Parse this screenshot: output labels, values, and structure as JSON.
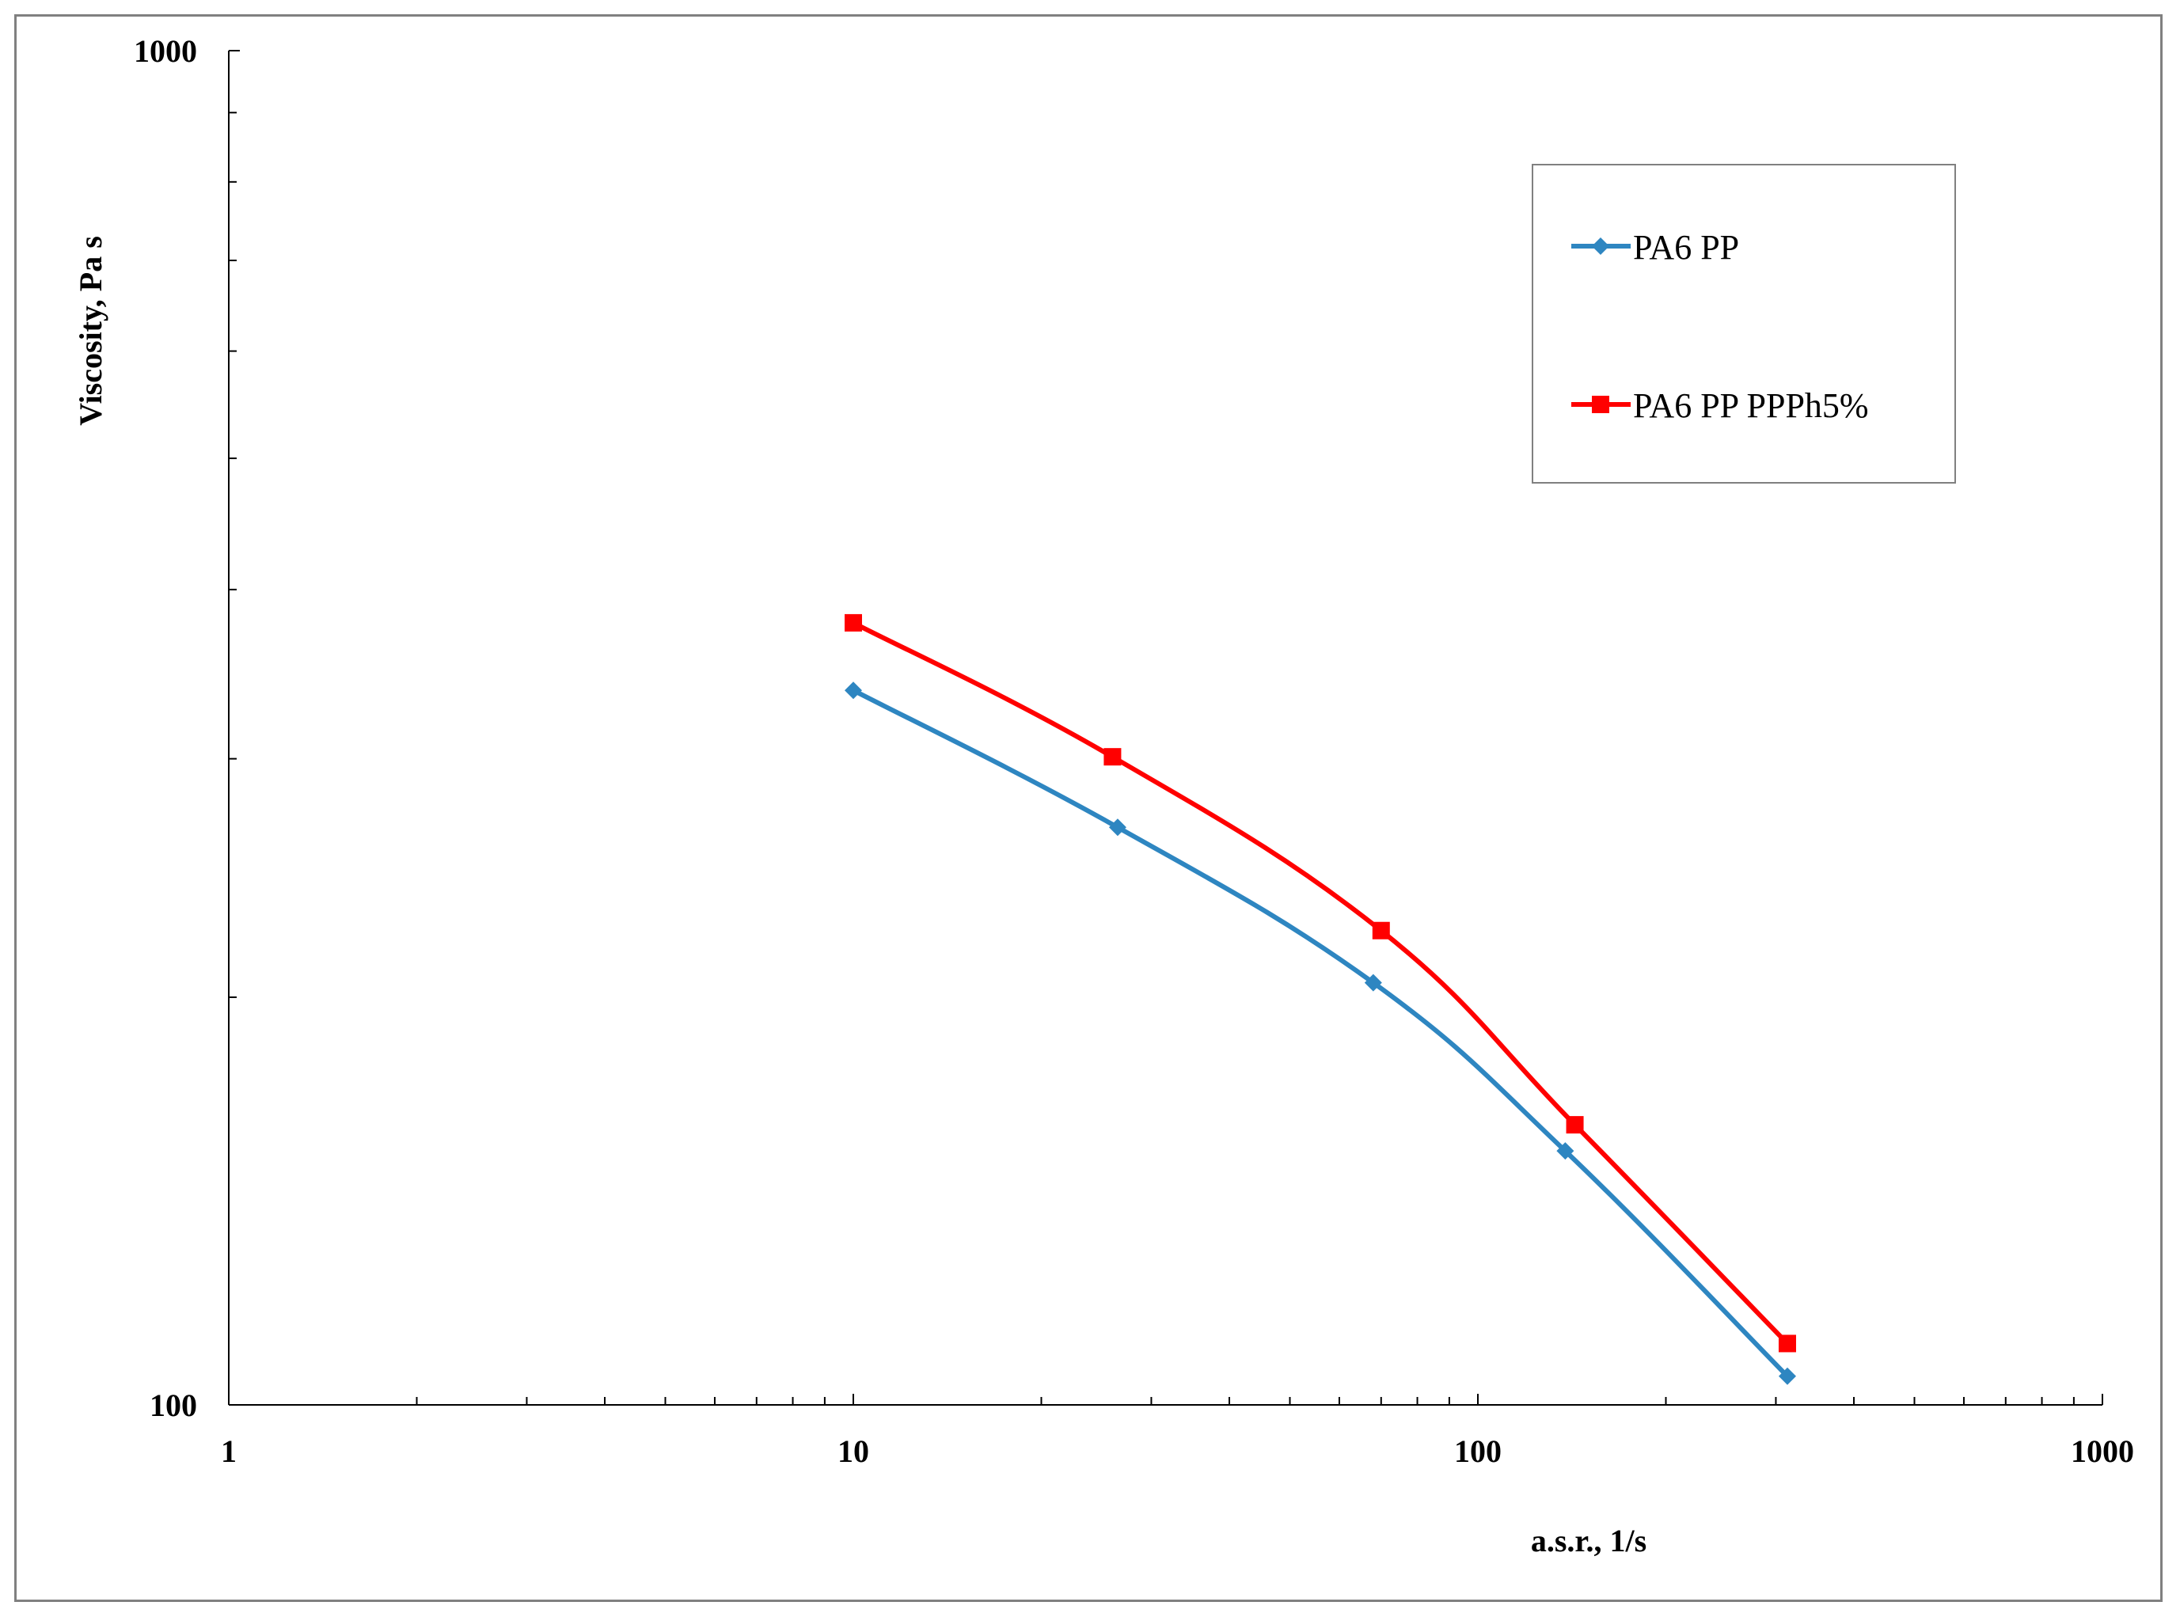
{
  "chart_data": {
    "type": "line",
    "xlabel": "a.s.r., 1/s",
    "ylabel": "Viscosity, Pa s",
    "xscale": "log",
    "yscale": "log",
    "xlim": [
      1,
      1000
    ],
    "ylim": [
      100,
      1000
    ],
    "xticks": [
      "1",
      "10",
      "100",
      "1000"
    ],
    "yticks": [
      "100",
      "1000"
    ],
    "legend_position": "top-right",
    "grid": false,
    "series": [
      {
        "name": "PA6 PP",
        "color": "#2E86C1",
        "marker": "diamond",
        "x": [
          10,
          26.5,
          68,
          138,
          313
        ],
        "y": [
          337,
          267,
          205,
          154,
          105
        ]
      },
      {
        "name": "PA6 PP PPPh5%",
        "color": "#FF0000",
        "marker": "square",
        "x": [
          10,
          26.0,
          70,
          143,
          313
        ],
        "y": [
          378,
          301,
          224,
          161,
          111
        ]
      }
    ]
  }
}
